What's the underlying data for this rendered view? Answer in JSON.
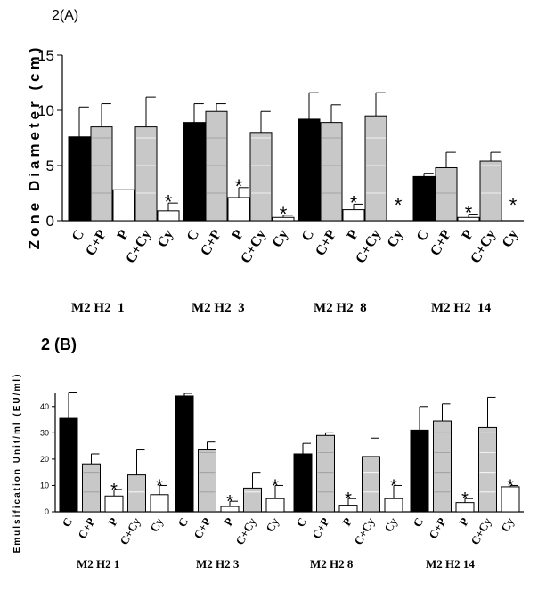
{
  "chart_data": [
    {
      "type": "bar",
      "title": "2(A)",
      "xlabel": "",
      "ylabel": "Zone Diameter (cm)",
      "ylim": [
        0,
        15
      ],
      "yticks": [
        "0",
        "5",
        "10",
        "15"
      ],
      "categories": [
        "C",
        "C+P",
        "P",
        "C+Cy",
        "Cy"
      ],
      "groups": [
        {
          "name": "M2 H2  1",
          "values": [
            7.6,
            8.5,
            2.8,
            8.5,
            0.9
          ],
          "errors": [
            2.7,
            2.1,
            0,
            2.7,
            0.7
          ],
          "significant": [
            false,
            false,
            false,
            false,
            true
          ]
        },
        {
          "name": "M2 H2  3",
          "values": [
            8.9,
            9.9,
            2.1,
            8.0,
            0.3
          ],
          "errors": [
            1.7,
            0.7,
            0.9,
            1.9,
            0.2
          ],
          "significant": [
            false,
            false,
            true,
            false,
            true
          ]
        },
        {
          "name": "M2 H2  8",
          "values": [
            9.2,
            8.9,
            1.0,
            9.5,
            0
          ],
          "errors": [
            2.4,
            1.6,
            0.5,
            2.1,
            0
          ],
          "significant": [
            false,
            false,
            true,
            false,
            true
          ]
        },
        {
          "name": "M2 H2  14",
          "values": [
            4.0,
            4.8,
            0.3,
            5.4,
            0
          ],
          "errors": [
            0.3,
            1.4,
            0.3,
            0.8,
            0
          ],
          "significant": [
            false,
            false,
            true,
            false,
            true
          ]
        }
      ]
    },
    {
      "type": "bar",
      "title": "2 (B)",
      "xlabel": "",
      "ylabel": "Emulsification Unit/ml (EU/ml)",
      "ylim": [
        0,
        45
      ],
      "yticks": [
        "0",
        "10",
        "20",
        "30",
        "40"
      ],
      "categories": [
        "C",
        "C+P",
        "P",
        "C+Cy",
        "Cy"
      ],
      "groups": [
        {
          "name": "M2 H2 1",
          "values": [
            35.5,
            18.2,
            6.0,
            14.0,
            6.5
          ],
          "errors": [
            10,
            3.8,
            2.5,
            9.5,
            3.5
          ],
          "significant": [
            false,
            false,
            true,
            false,
            true
          ]
        },
        {
          "name": "M2 H2 3",
          "values": [
            44.0,
            23.5,
            2.0,
            9.0,
            5.0
          ],
          "errors": [
            1,
            3.0,
            2.0,
            6.0,
            5.0
          ],
          "significant": [
            false,
            false,
            true,
            false,
            true
          ]
        },
        {
          "name": "M2 H2 8",
          "values": [
            22.0,
            29.0,
            2.5,
            21.0,
            5.0
          ],
          "errors": [
            4.0,
            1.0,
            2.5,
            7.0,
            5.0
          ],
          "significant": [
            false,
            false,
            true,
            false,
            true
          ]
        },
        {
          "name": "M2 H2 14",
          "values": [
            31.0,
            34.5,
            3.5,
            32.0,
            9.5
          ],
          "errors": [
            9.0,
            6.5,
            1.5,
            11.5,
            0.5
          ],
          "significant": [
            false,
            false,
            true,
            false,
            true
          ]
        }
      ]
    }
  ],
  "significance_marker": "*",
  "colors": {
    "C": "#000000",
    "C+P": "#c8c8c8",
    "P": "#ffffff",
    "C+Cy": "#c8c8c8",
    "Cy": "#ffffff",
    "C+P_grid": "#9a9a9a",
    "C+Cy_grid": "#ffffff"
  }
}
